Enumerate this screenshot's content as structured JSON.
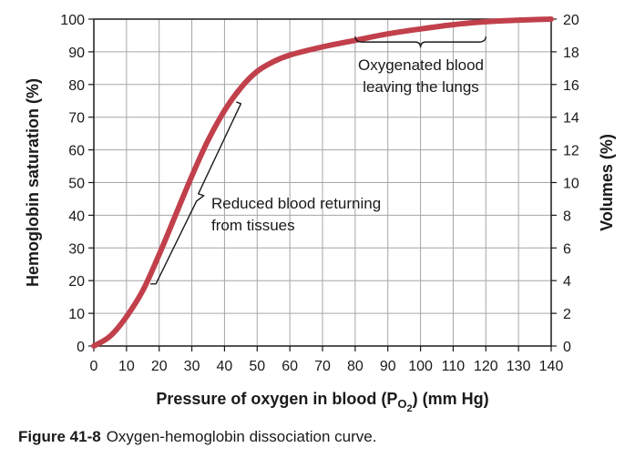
{
  "chart_data": {
    "type": "line",
    "xlabel_prefix": "Pressure of oxygen in blood (P",
    "xlabel_sub_o": "O",
    "xlabel_sub_2": "2",
    "xlabel_suffix": ") (mm Hg)",
    "ylabel": "Hemoglobin saturation (%)",
    "y2label": "Volumes (%)",
    "xlim": [
      0,
      140
    ],
    "ylim": [
      0,
      100
    ],
    "y2lim": [
      0,
      20
    ],
    "grid": true,
    "x_ticks": [
      "0",
      "10",
      "20",
      "30",
      "40",
      "50",
      "60",
      "70",
      "80",
      "90",
      "100",
      "110",
      "120",
      "130",
      "140"
    ],
    "y_ticks": [
      "0",
      "10",
      "20",
      "30",
      "40",
      "50",
      "60",
      "70",
      "80",
      "90",
      "100"
    ],
    "y2_ticks": [
      "0",
      "2",
      "4",
      "6",
      "8",
      "10",
      "12",
      "14",
      "16",
      "18",
      "20"
    ],
    "series": [
      {
        "color": "#c1404b",
        "x": [
          0,
          5,
          10,
          15,
          20,
          25,
          30,
          35,
          40,
          45,
          50,
          55,
          60,
          70,
          80,
          90,
          100,
          110,
          120,
          130,
          140
        ],
        "y": [
          0,
          3,
          9,
          17,
          28,
          40,
          52,
          63,
          72,
          79,
          84,
          87,
          89,
          91.5,
          93.5,
          95.5,
          97,
          98.3,
          99.2,
          99.7,
          100
        ]
      }
    ],
    "annotations": [
      {
        "lines": [
          "Oxygenated blood",
          "leaving the lungs"
        ],
        "bracket_x": [
          80,
          120
        ],
        "bracket_y": 93
      },
      {
        "lines": [
          "Reduced blood returning",
          "from tissues"
        ],
        "bracket_from": [
          19,
          19
        ],
        "bracket_to": [
          45,
          73
        ]
      }
    ]
  },
  "caption": {
    "label": "Figure 41-8",
    "text": "Oxygen-hemoglobin dissociation curve."
  }
}
